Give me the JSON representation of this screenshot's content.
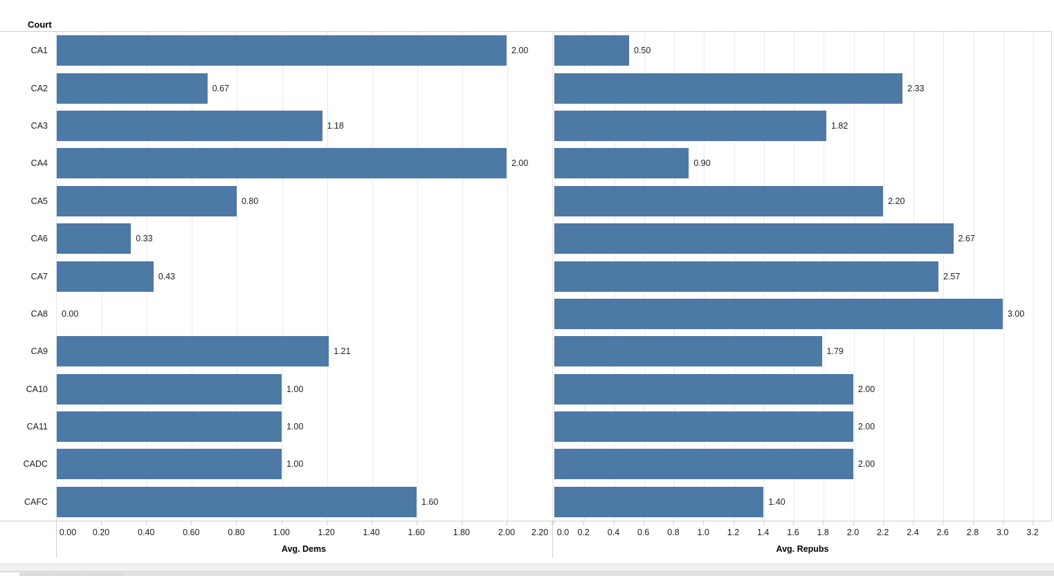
{
  "window": {
    "row_header_title": "Court",
    "bar_color": "#4d79a7"
  },
  "chart_data": {
    "type": "bar",
    "orientation": "horizontal",
    "title": "",
    "row_axis_title": "Court",
    "grid": true,
    "bar_color": "#4d79a7",
    "categories": [
      "CA1",
      "CA2",
      "CA3",
      "CA4",
      "CA5",
      "CA6",
      "CA7",
      "CA8",
      "CA9",
      "CA10",
      "CA11",
      "CADC",
      "CAFC"
    ],
    "series": [
      {
        "name": "Avg. Dems",
        "values": [
          2.0,
          0.67,
          1.18,
          2.0,
          0.8,
          0.33,
          0.43,
          0.0,
          1.21,
          1.0,
          1.0,
          1.0,
          1.6
        ],
        "value_labels": [
          "2.00",
          "0.67",
          "1.18",
          "2.00",
          "0.80",
          "0.33",
          "0.43",
          "0.00",
          "1.21",
          "1.00",
          "1.00",
          "1.00",
          "1.60"
        ],
        "axis": {
          "label": "Avg. Dems",
          "tick_values": [
            0.0,
            0.2,
            0.4,
            0.6,
            0.8,
            1.0,
            1.2,
            1.4,
            1.6,
            1.8,
            2.0,
            2.2
          ],
          "tick_labels": [
            "0.00",
            "0.20",
            "0.40",
            "0.60",
            "0.80",
            "1.00",
            "1.20",
            "1.40",
            "1.60",
            "1.80",
            "2.00",
            "2.20"
          ],
          "domain_max": 2.2
        }
      },
      {
        "name": "Avg. Repubs",
        "values": [
          0.5,
          2.33,
          1.82,
          0.9,
          2.2,
          2.67,
          2.57,
          3.0,
          1.79,
          2.0,
          2.0,
          2.0,
          1.4
        ],
        "value_labels": [
          "0.50",
          "2.33",
          "1.82",
          "0.90",
          "2.20",
          "2.67",
          "2.57",
          "3.00",
          "1.79",
          "2.00",
          "2.00",
          "2.00",
          "1.40"
        ],
        "axis": {
          "label": "Avg. Repubs",
          "tick_values": [
            0.0,
            0.2,
            0.4,
            0.6,
            0.8,
            1.0,
            1.2,
            1.4,
            1.6,
            1.8,
            2.0,
            2.2,
            2.4,
            2.6,
            2.8,
            3.0,
            3.2
          ],
          "tick_labels": [
            "0.0",
            "0.2",
            "0.4",
            "0.6",
            "0.8",
            "1.0",
            "1.2",
            "1.4",
            "1.6",
            "1.8",
            "2.0",
            "2.2",
            "2.4",
            "2.6",
            "2.8",
            "3.0",
            "3.2"
          ],
          "domain_max": 3.325
        }
      }
    ]
  }
}
